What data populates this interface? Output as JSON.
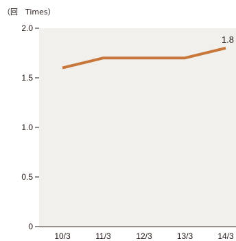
{
  "chart_data": {
    "type": "line",
    "unit_label": "（回　Times）",
    "categories": [
      "10/3",
      "11/3",
      "12/3",
      "13/3",
      "14/3"
    ],
    "series": [
      {
        "values": [
          1.6,
          1.7,
          1.7,
          1.7,
          1.8
        ]
      }
    ],
    "y_ticks": [
      {
        "value": 0,
        "label": "0"
      },
      {
        "value": 0.5,
        "label": "0.5"
      },
      {
        "value": 1.0,
        "label": "1.0"
      },
      {
        "value": 1.5,
        "label": "1.5"
      },
      {
        "value": 2.0,
        "label": "2.0"
      }
    ],
    "ylim": [
      0,
      2.0
    ],
    "data_labels": [
      {
        "index": 4,
        "text": "1.8"
      }
    ],
    "grid": false,
    "legend": "none",
    "colors": {
      "line": "#C8763A",
      "plot_background": "#F1F0EC",
      "axis": "#231815",
      "text": "#231815"
    }
  }
}
